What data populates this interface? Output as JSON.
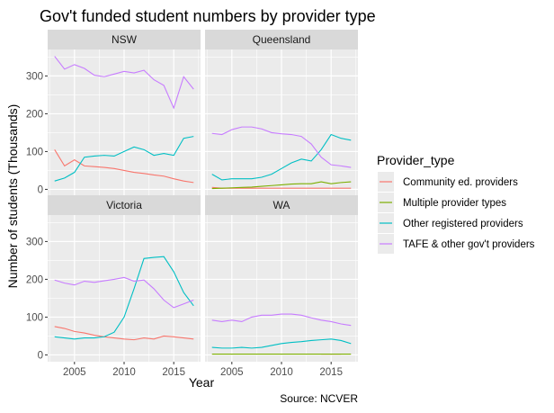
{
  "chart_data": {
    "type": "line",
    "title": "Gov't funded student numbers by provider type",
    "xlabel": "Year",
    "ylabel": "Number of students (Thousands)",
    "caption": "Source: NCVER",
    "legend_title": "Provider_type",
    "legend_position": "right",
    "grid": true,
    "xlim": [
      2002.3,
      2017.7
    ],
    "ylim": [
      -18,
      370
    ],
    "x_ticks": [
      2005,
      2010,
      2015
    ],
    "y_ticks": [
      0,
      100,
      200,
      300
    ],
    "x_tick_labels": [
      "2005",
      "2010",
      "2015"
    ],
    "y_tick_labels": [
      "0",
      "100",
      "200",
      "300"
    ],
    "x": [
      2003,
      2004,
      2005,
      2006,
      2007,
      2008,
      2009,
      2010,
      2011,
      2012,
      2013,
      2014,
      2015,
      2016,
      2017
    ],
    "series_meta": [
      {
        "name": "Community ed. providers",
        "color": "#F8766D"
      },
      {
        "name": "Multiple provider types",
        "color": "#7CAE00"
      },
      {
        "name": "Other registered providers",
        "color": "#00BFC4"
      },
      {
        "name": "TAFE & other gov't providers",
        "color": "#C77CFF"
      }
    ],
    "panels": [
      {
        "name": "NSW",
        "series": [
          {
            "name": "Community ed. providers",
            "values": [
              105,
              62,
              78,
              62,
              60,
              58,
              55,
              50,
              45,
              42,
              38,
              35,
              28,
              22,
              18
            ]
          },
          {
            "name": "Multiple provider types",
            "values": [
              null,
              null,
              null,
              null,
              null,
              null,
              null,
              null,
              null,
              null,
              null,
              null,
              null,
              null,
              null
            ]
          },
          {
            "name": "Other registered providers",
            "values": [
              22,
              30,
              45,
              85,
              88,
              90,
              88,
              100,
              112,
              105,
              90,
              95,
              90,
              135,
              140
            ]
          },
          {
            "name": "TAFE & other gov't providers",
            "values": [
              352,
              318,
              330,
              320,
              302,
              298,
              305,
              312,
              308,
              315,
              290,
              275,
              215,
              298,
              265
            ]
          }
        ]
      },
      {
        "name": "Queensland",
        "series": [
          {
            "name": "Community ed. providers",
            "values": [
              5,
              3,
              3,
              3,
              3,
              3,
              3,
              3,
              3,
              3,
              3,
              3,
              3,
              3,
              3
            ]
          },
          {
            "name": "Multiple provider types",
            "values": [
              2,
              3,
              4,
              5,
              6,
              8,
              10,
              12,
              14,
              15,
              15,
              20,
              15,
              18,
              20
            ]
          },
          {
            "name": "Other registered providers",
            "values": [
              40,
              25,
              28,
              28,
              28,
              32,
              40,
              55,
              70,
              80,
              75,
              105,
              145,
              135,
              130
            ]
          },
          {
            "name": "TAFE & other gov't providers",
            "values": [
              148,
              145,
              158,
              165,
              165,
              160,
              150,
              147,
              145,
              140,
              120,
              85,
              65,
              62,
              58
            ]
          }
        ]
      },
      {
        "name": "Victoria",
        "series": [
          {
            "name": "Community ed. providers",
            "values": [
              75,
              70,
              62,
              58,
              52,
              48,
              45,
              42,
              40,
              45,
              42,
              50,
              48,
              45,
              42
            ]
          },
          {
            "name": "Multiple provider types",
            "values": [
              null,
              null,
              null,
              null,
              null,
              null,
              null,
              null,
              null,
              null,
              null,
              null,
              null,
              null,
              null
            ]
          },
          {
            "name": "Other registered providers",
            "values": [
              48,
              45,
              42,
              45,
              45,
              48,
              60,
              100,
              175,
              255,
              258,
              260,
              220,
              165,
              130
            ]
          },
          {
            "name": "TAFE & other gov't providers",
            "values": [
              198,
              190,
              185,
              195,
              192,
              196,
              200,
              205,
              195,
              198,
              175,
              145,
              125,
              135,
              145
            ]
          }
        ]
      },
      {
        "name": "WA",
        "series": [
          {
            "name": "Community ed. providers",
            "values": [
              null,
              null,
              null,
              null,
              null,
              null,
              null,
              null,
              null,
              null,
              null,
              2,
              2,
              2,
              null
            ]
          },
          {
            "name": "Multiple provider types",
            "values": [
              2,
              2,
              2,
              2,
              2,
              2,
              2,
              2,
              2,
              2,
              2,
              2,
              2,
              2,
              2
            ]
          },
          {
            "name": "Other registered providers",
            "values": [
              20,
              18,
              18,
              20,
              18,
              20,
              25,
              30,
              33,
              35,
              38,
              40,
              42,
              38,
              30
            ]
          },
          {
            "name": "TAFE & other gov't providers",
            "values": [
              92,
              88,
              92,
              88,
              100,
              105,
              105,
              108,
              108,
              105,
              98,
              92,
              88,
              82,
              78
            ]
          }
        ]
      }
    ]
  }
}
